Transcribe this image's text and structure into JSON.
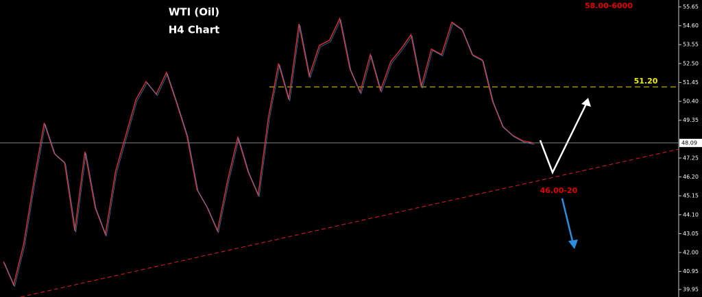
{
  "chart_data": {
    "type": "line",
    "title": "WTI (Oil)",
    "subtitle": "H4 Chart",
    "categories": [
      null,
      null,
      null,
      null,
      null,
      null,
      null,
      null,
      null,
      null,
      null,
      null,
      null,
      null,
      null,
      null,
      null,
      null,
      null,
      null,
      null,
      null,
      null,
      null,
      null,
      null,
      null,
      null,
      null,
      null,
      null,
      null,
      null,
      null,
      null,
      null,
      null,
      null,
      null,
      null,
      null,
      null,
      null,
      null,
      null,
      null,
      null,
      null,
      null,
      null,
      null,
      null,
      null
    ],
    "series": [
      {
        "name": "WTI",
        "color": "#e53030",
        "values": [
          41.5,
          40.2,
          42.5,
          46.0,
          49.2,
          47.5,
          47.0,
          43.2,
          47.6,
          44.5,
          43.0,
          46.5,
          48.5,
          50.5,
          51.5,
          50.8,
          52.0,
          50.3,
          48.5,
          45.5,
          44.5,
          43.2,
          46.0,
          48.4,
          46.5,
          45.2,
          49.5,
          52.5,
          50.5,
          54.7,
          51.8,
          53.5,
          53.8,
          55.0,
          52.2,
          50.9,
          53.0,
          51.0,
          52.6,
          53.3,
          54.1,
          51.2,
          53.3,
          53.0,
          54.8,
          54.4,
          53.0,
          52.7,
          50.4,
          49.0,
          48.5,
          48.2,
          48.09
        ]
      }
    ],
    "ylim": [
      39.53,
      56.03
    ],
    "yticks": [
      55.65,
      {
        "value": 54.6,
        "label": "54.60"
      },
      53.55,
      {
        "value": 52.5,
        "label": "52.50"
      },
      51.45,
      {
        "value": 50.4,
        "label": "50.40"
      },
      49.35,
      47.25,
      {
        "value": 46.2,
        "label": "46.20"
      },
      45.15,
      {
        "value": 44.1,
        "label": "44.10"
      },
      43.05,
      {
        "value": 42,
        "label": "42.00"
      },
      40.95,
      39.95
    ],
    "last_price": 48.09,
    "resistance": {
      "value": 51.2,
      "label": "51.20"
    },
    "annotations": [
      "58.00-6000",
      "46.00-20"
    ]
  }
}
